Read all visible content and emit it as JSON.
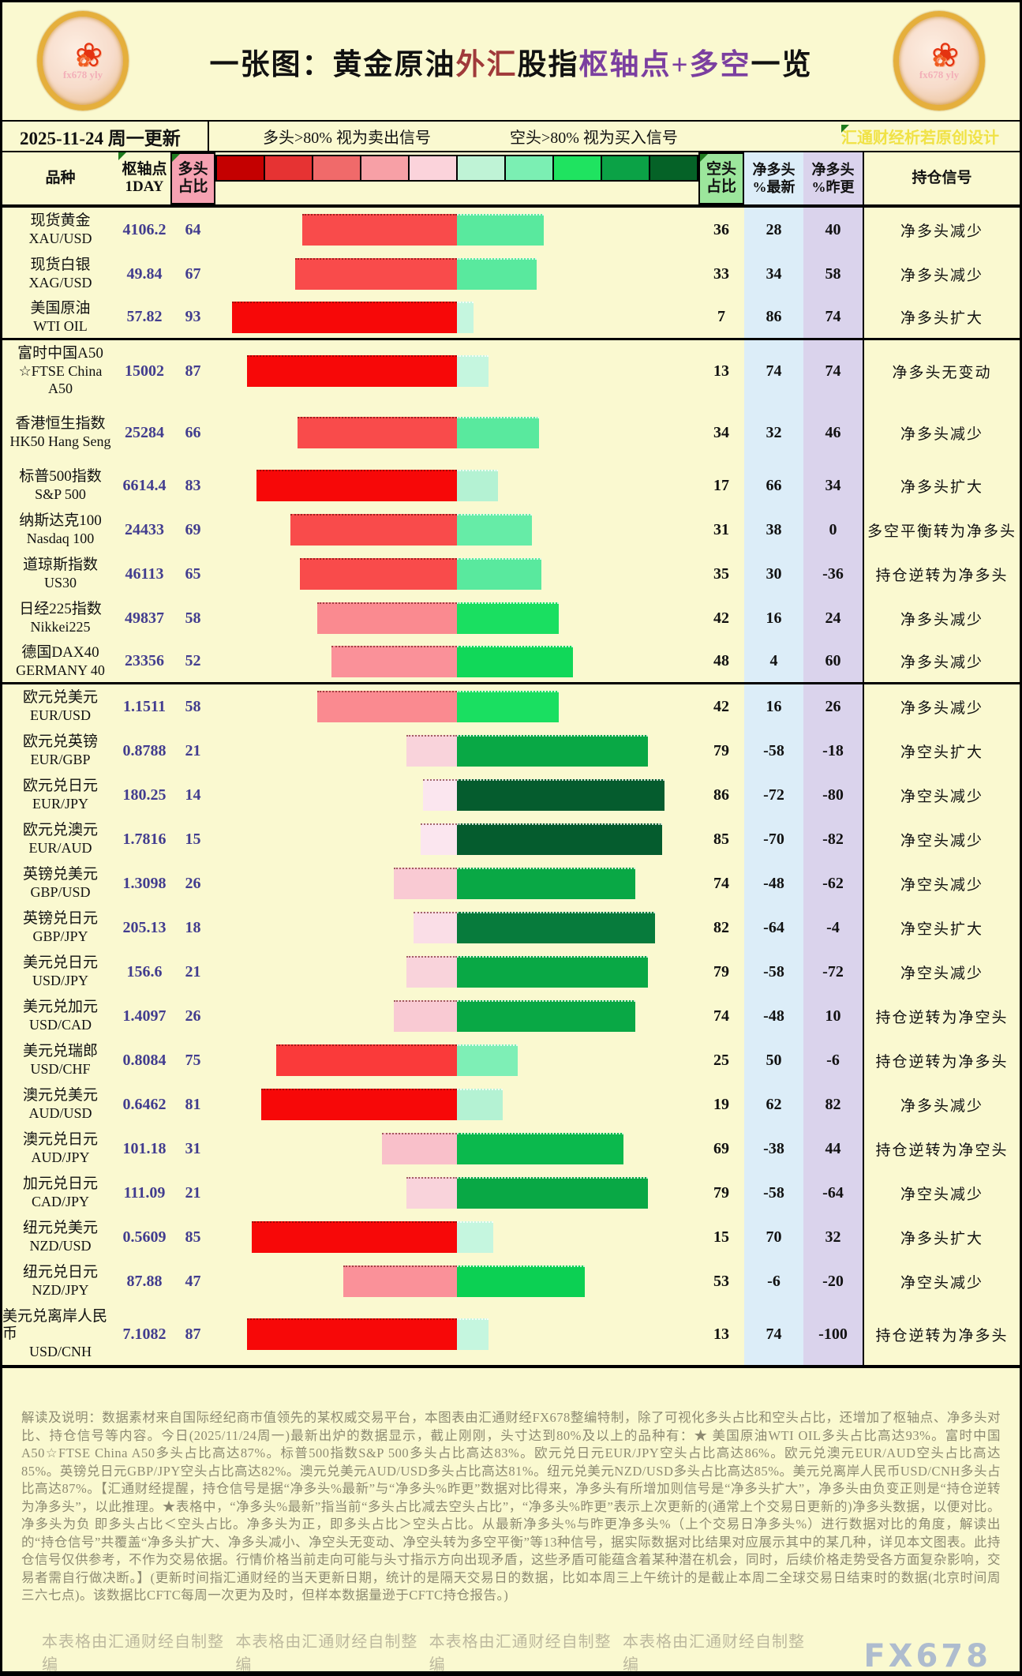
{
  "header": {
    "title_segments": [
      {
        "text": "一张图：黄金原油",
        "color": "#111111"
      },
      {
        "text": "外汇",
        "color": "#A03A3A"
      },
      {
        "text": "股指",
        "color": "#111111"
      },
      {
        "text": "枢轴点+多空",
        "color": "#7B3FA0"
      },
      {
        "text": "一览",
        "color": "#111111"
      }
    ],
    "logo_watermark": "fx678 yly"
  },
  "subheader": {
    "date": "2025-11-24 周一更新",
    "long_note": "多头>80% 视为卖出信号",
    "short_note": "空头>80% 视为买入信号",
    "watermark": "汇通财经析若原创设计"
  },
  "columns": {
    "instrument": "品种",
    "pivot_l1": "枢轴点",
    "pivot_l2": "1DAY",
    "long_l1": "多头",
    "long_l2": "占比",
    "short_l1": "空头",
    "short_l2": "占比",
    "net_latest_l1": "净多头",
    "net_latest_l2": "%最新",
    "net_prev_l1": "净多头",
    "net_prev_l2": "%昨更",
    "signal": "持仓信号"
  },
  "legend_colors": [
    "#C40000",
    "#E63333",
    "#F06A6A",
    "#F7A0A6",
    "#FBD3DB",
    "#BFF3D6",
    "#7BEFB3",
    "#1FE360",
    "#0BA246",
    "#056227"
  ],
  "rows": [
    {
      "name": "现货黄金",
      "code": "XAU/USD",
      "pivot": "4106.2",
      "long": 64,
      "short": 36,
      "net_latest": 28,
      "net_prev": 40,
      "signal": "净多头减少"
    },
    {
      "name": "现货白银",
      "code": "XAG/USD",
      "pivot": "49.84",
      "long": 67,
      "short": 33,
      "net_latest": 34,
      "net_prev": 58,
      "signal": "净多头减少"
    },
    {
      "name": "美国原油",
      "code": "WTI OIL",
      "pivot": "57.82",
      "long": 93,
      "short": 7,
      "net_latest": 86,
      "net_prev": 74,
      "signal": "净多头扩大",
      "divider_after": true
    },
    {
      "name": "富时中国A50",
      "code": "☆FTSE China A50",
      "pivot": "15002",
      "long": 87,
      "short": 13,
      "net_latest": 74,
      "net_prev": 74,
      "signal": "净多头无变动",
      "tall": true
    },
    {
      "name": "香港恒生指数",
      "code": "HK50 Hang Seng",
      "pivot": "25284",
      "long": 66,
      "short": 34,
      "net_latest": 32,
      "net_prev": 46,
      "signal": "净多头减少",
      "tall": true
    },
    {
      "name": "标普500指数",
      "code": "S&P 500",
      "pivot": "6614.4",
      "long": 83,
      "short": 17,
      "net_latest": 66,
      "net_prev": 34,
      "signal": "净多头扩大"
    },
    {
      "name": "纳斯达克100",
      "code": "Nasdaq 100",
      "pivot": "24433",
      "long": 69,
      "short": 31,
      "net_latest": 38,
      "net_prev": 0,
      "signal": "多空平衡转为净多头"
    },
    {
      "name": "道琼斯指数",
      "code": "US30",
      "pivot": "46113",
      "long": 65,
      "short": 35,
      "net_latest": 30,
      "net_prev": -36,
      "signal": "持仓逆转为净多头"
    },
    {
      "name": "日经225指数",
      "code": "Nikkei225",
      "pivot": "49837",
      "long": 58,
      "short": 42,
      "net_latest": 16,
      "net_prev": 24,
      "signal": "净多头减少"
    },
    {
      "name": "德国DAX40",
      "code": "GERMANY 40",
      "pivot": "23356",
      "long": 52,
      "short": 48,
      "net_latest": 4,
      "net_prev": 60,
      "signal": "净多头减少",
      "divider_after": true
    },
    {
      "name": "欧元兑美元",
      "code": "EUR/USD",
      "pivot": "1.1511",
      "long": 58,
      "short": 42,
      "net_latest": 16,
      "net_prev": 26,
      "signal": "净多头减少"
    },
    {
      "name": "欧元兑英镑",
      "code": "EUR/GBP",
      "pivot": "0.8788",
      "long": 21,
      "short": 79,
      "net_latest": -58,
      "net_prev": -18,
      "signal": "净空头扩大"
    },
    {
      "name": "欧元兑日元",
      "code": "EUR/JPY",
      "pivot": "180.25",
      "long": 14,
      "short": 86,
      "net_latest": -72,
      "net_prev": -80,
      "signal": "净空头减少"
    },
    {
      "name": "欧元兑澳元",
      "code": "EUR/AUD",
      "pivot": "1.7816",
      "long": 15,
      "short": 85,
      "net_latest": -70,
      "net_prev": -82,
      "signal": "净空头减少"
    },
    {
      "name": "英镑兑美元",
      "code": "GBP/USD",
      "pivot": "1.3098",
      "long": 26,
      "short": 74,
      "net_latest": -48,
      "net_prev": -62,
      "signal": "净空头减少"
    },
    {
      "name": "英镑兑日元",
      "code": "GBP/JPY",
      "pivot": "205.13",
      "long": 18,
      "short": 82,
      "net_latest": -64,
      "net_prev": -4,
      "signal": "净空头扩大"
    },
    {
      "name": "美元兑日元",
      "code": "USD/JPY",
      "pivot": "156.6",
      "long": 21,
      "short": 79,
      "net_latest": -58,
      "net_prev": -72,
      "signal": "净空头减少"
    },
    {
      "name": "美元兑加元",
      "code": "USD/CAD",
      "pivot": "1.4097",
      "long": 26,
      "short": 74,
      "net_latest": -48,
      "net_prev": 10,
      "signal": "持仓逆转为净空头"
    },
    {
      "name": "美元兑瑞郎",
      "code": "USD/CHF",
      "pivot": "0.8084",
      "long": 75,
      "short": 25,
      "net_latest": 50,
      "net_prev": -6,
      "signal": "持仓逆转为净多头"
    },
    {
      "name": "澳元兑美元",
      "code": "AUD/USD",
      "pivot": "0.6462",
      "long": 81,
      "short": 19,
      "net_latest": 62,
      "net_prev": 82,
      "signal": "净多头减少"
    },
    {
      "name": "澳元兑日元",
      "code": "AUD/JPY",
      "pivot": "101.18",
      "long": 31,
      "short": 69,
      "net_latest": -38,
      "net_prev": 44,
      "signal": "持仓逆转为净空头"
    },
    {
      "name": "加元兑日元",
      "code": "CAD/JPY",
      "pivot": "111.09",
      "long": 21,
      "short": 79,
      "net_latest": -58,
      "net_prev": -64,
      "signal": "净空头减少"
    },
    {
      "name": "纽元兑美元",
      "code": "NZD/USD",
      "pivot": "0.5609",
      "long": 85,
      "short": 15,
      "net_latest": 70,
      "net_prev": 32,
      "signal": "净多头扩大"
    },
    {
      "name": "纽元兑日元",
      "code": "NZD/JPY",
      "pivot": "87.88",
      "long": 47,
      "short": 53,
      "net_latest": -6,
      "net_prev": -20,
      "signal": "净空头减少"
    },
    {
      "name": "美元兑离岸人民币",
      "code": "USD/CNH",
      "pivot": "7.1082",
      "long": 87,
      "short": 13,
      "net_latest": 74,
      "net_prev": -100,
      "signal": "持仓逆转为净多头",
      "tall": true
    }
  ],
  "footer": {
    "note": "解读及说明：数据素材来自国际经纪商市值领先的某权威交易平台，本图表由汇通财经FX678整编特制，除了可视化多头占比和空头占比，还增加了枢轴点、净多头对比、持仓信号等内容。今日(2025/11/24周一)最新出炉的数据显示，截止刚刚，头寸达到80%及以上的品种有：★ 美国原油WTI OIL多头占比高达93%。富时中国A50☆FTSE China A50多头占比高达87%。标普500指数S&P 500多头占比高达83%。欧元兑日元EUR/JPY空头占比高达86%。欧元兑澳元EUR/AUD空头占比高达85%。英镑兑日元GBP/JPY空头占比高达82%。澳元兑美元AUD/USD多头占比高达81%。纽元兑美元NZD/USD多头占比高达85%。美元兑离岸人民币USD/CNH多头占比高达87%。【汇通财经提醒，持仓信号是据“净多头%最新”与“净多头%昨更”数据对比得来，净多头有所增加则信号是“净多头扩大”，净多头由负变正则是“持仓逆转为净多头”，以此推理。★表格中，“净多头%最新”指当前“多头占比减去空头占比”，“净多头%昨更”表示上次更新的(通常上个交易日更新的)净多头数据，以便对比。净多头为负 即多头占比＜空头占比。净多头为正，即多头占比＞空头占比。从最新净多头%与昨更净多头%（上个交易日净多头%）进行数据对比的角度，解读出的“持仓信号”共覆盖“净多头扩大、净多头减小、净空头无变动、净空头转为多空平衡”等13种信号，据实际数据对比结果对应展示其中的某几种，详见本文图表。此持仓信号仅供参考，不作为交易依据。行情价格当前走向可能与头寸指示方向出现矛盾，这些矛盾可能蕴含着某种潜在机会，同时，后续价格走势受各方面复杂影响，交易者需自行做决断。】(更新时间指汇通财经的当天更新日期，统计的是隔天交易日的数据，比如本周三上午统计的是截止本周二全球交易日结束时的数据(北京时间周三六七点)。该数据比CFTC每周一次更为及时，但样本数据量逊于CFTC持仓报告。)",
    "stamps": [
      "本表格由汇通财经自制整编",
      "本表格由汇通财经自制整编",
      "本表格由汇通财经自制整编",
      "本表格由汇通财经自制整编"
    ],
    "brand": "FX678"
  },
  "chart_data": {
    "type": "bar",
    "orientation": "diverging-horizontal",
    "title": "一张图：黄金原油外汇股指枢轴点+多空一览",
    "categories": [
      "XAU/USD",
      "XAG/USD",
      "WTI OIL",
      "FTSE China A50",
      "HK50 Hang Seng",
      "S&P 500",
      "Nasdaq 100",
      "US30",
      "Nikkei225",
      "GERMANY 40",
      "EUR/USD",
      "EUR/GBP",
      "EUR/JPY",
      "EUR/AUD",
      "GBP/USD",
      "GBP/JPY",
      "USD/JPY",
      "USD/CAD",
      "USD/CHF",
      "AUD/USD",
      "AUD/JPY",
      "CAD/JPY",
      "NZD/USD",
      "NZD/JPY",
      "USD/CNH"
    ],
    "series": [
      {
        "name": "枢轴点1DAY",
        "values": [
          4106.2,
          49.84,
          57.82,
          15002,
          25284,
          6614.4,
          24433,
          46113,
          49837,
          23356,
          1.1511,
          0.8788,
          180.25,
          1.7816,
          1.3098,
          205.13,
          156.6,
          1.4097,
          0.8084,
          0.6462,
          101.18,
          111.09,
          0.5609,
          87.88,
          7.1082
        ]
      },
      {
        "name": "多头占比",
        "values": [
          64,
          67,
          93,
          87,
          66,
          83,
          69,
          65,
          58,
          52,
          58,
          21,
          14,
          15,
          26,
          18,
          21,
          26,
          75,
          81,
          31,
          21,
          85,
          47,
          87
        ]
      },
      {
        "name": "空头占比",
        "values": [
          36,
          33,
          7,
          13,
          34,
          17,
          31,
          35,
          42,
          48,
          42,
          79,
          86,
          85,
          74,
          82,
          79,
          74,
          25,
          19,
          69,
          79,
          15,
          53,
          13
        ]
      },
      {
        "name": "净多头%最新",
        "values": [
          28,
          34,
          86,
          74,
          32,
          66,
          38,
          30,
          16,
          4,
          16,
          -58,
          -72,
          -70,
          -48,
          -64,
          -58,
          -48,
          50,
          62,
          -38,
          -58,
          70,
          -6,
          74
        ]
      },
      {
        "name": "净多头%昨更",
        "values": [
          40,
          58,
          74,
          74,
          46,
          34,
          0,
          -36,
          24,
          60,
          26,
          -18,
          -80,
          -82,
          -62,
          -4,
          -72,
          10,
          -6,
          82,
          44,
          -64,
          32,
          -20,
          -100
        ]
      }
    ],
    "xlim": [
      -100,
      100
    ],
    "legend_position": "top",
    "grid": false
  }
}
